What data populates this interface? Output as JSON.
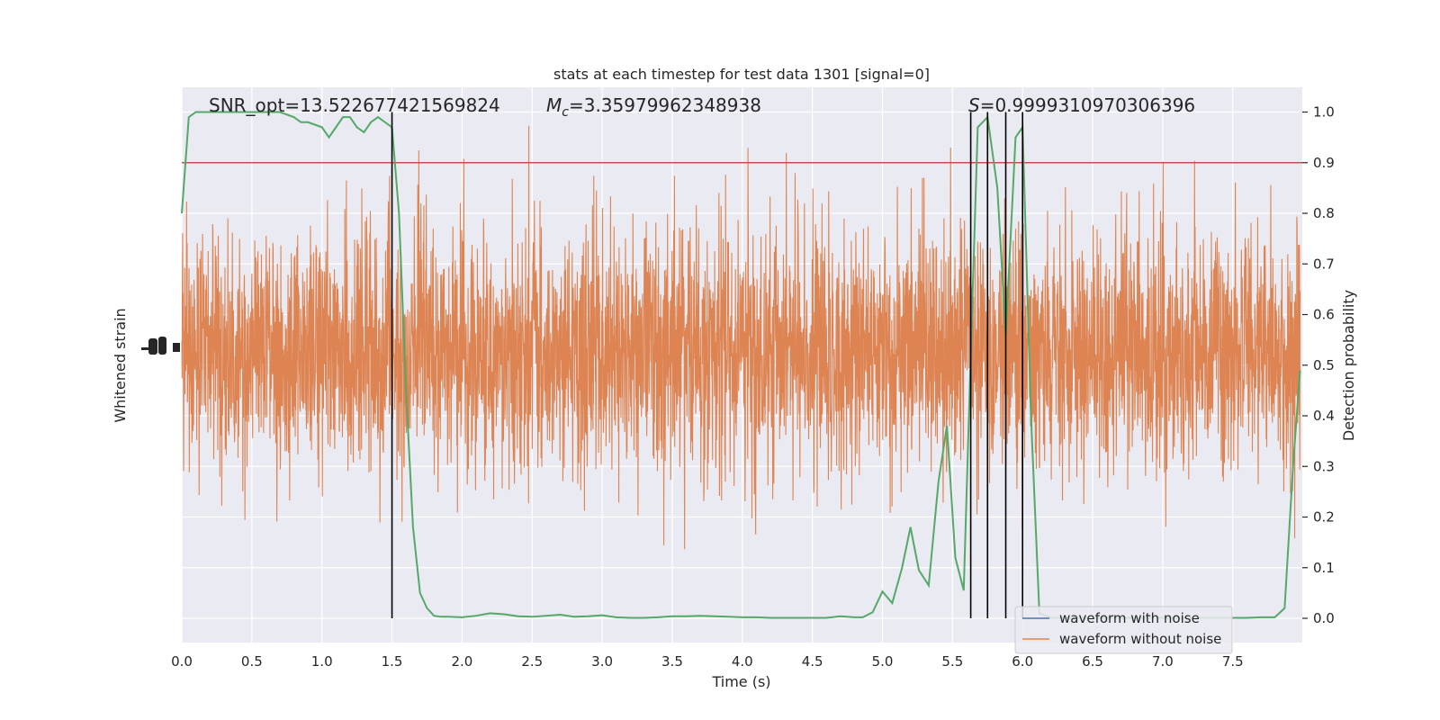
{
  "chart_data": {
    "type": "line",
    "title": "stats at each timestep for test data 1301 [signal=0]",
    "xlabel": "Time (s)",
    "ylabel_left": "Whitened strain",
    "ylabel_right": "Detection probability",
    "xlim": [
      0.0,
      8.0
    ],
    "ylim_right": [
      -0.05,
      1.05
    ],
    "x_ticks": [
      "0.0",
      "0.5",
      "1.0",
      "1.5",
      "2.0",
      "2.5",
      "3.0",
      "3.5",
      "4.0",
      "4.5",
      "5.0",
      "5.5",
      "6.0",
      "6.5",
      "7.0",
      "7.5"
    ],
    "y_right_ticks": [
      "0.0",
      "0.1",
      "0.2",
      "0.3",
      "0.4",
      "0.5",
      "0.6",
      "0.7",
      "0.8",
      "0.9",
      "1.0"
    ],
    "grid": true,
    "legend_position": "bottom-right",
    "annotations": {
      "snr": "SNR_opt=13.522677421569824",
      "mc_symbol": "M",
      "mc_sub": "c",
      "mc_value": "=3.35979962348938",
      "s_symbol": "S",
      "s_value": "=0.9999310970306396"
    },
    "threshold": 0.9,
    "vertical_lines_x": [
      1.5,
      5.63,
      5.75,
      5.88,
      6.0
    ],
    "series": [
      {
        "name": "waveform with noise",
        "color": "#4c72b0",
        "kind": "strain"
      },
      {
        "name": "waveform without noise",
        "color": "#dd8452",
        "kind": "strain"
      },
      {
        "kind": "probability",
        "color": "#55a868",
        "x": [
          0.0,
          0.05,
          0.1,
          0.2,
          0.3,
          0.4,
          0.5,
          0.6,
          0.7,
          0.8,
          0.85,
          0.9,
          1.0,
          1.05,
          1.1,
          1.15,
          1.2,
          1.25,
          1.3,
          1.35,
          1.4,
          1.45,
          1.5,
          1.55,
          1.6,
          1.65,
          1.7,
          1.75,
          1.8,
          1.85,
          1.9,
          2.0,
          2.1,
          2.2,
          2.3,
          2.4,
          2.5,
          2.6,
          2.7,
          2.8,
          2.9,
          3.0,
          3.1,
          3.2,
          3.3,
          3.4,
          3.5,
          3.6,
          3.7,
          3.8,
          3.9,
          4.0,
          4.1,
          4.2,
          4.3,
          4.4,
          4.5,
          4.6,
          4.7,
          4.8,
          4.86,
          4.93,
          5.0,
          5.07,
          5.14,
          5.2,
          5.26,
          5.33,
          5.4,
          5.46,
          5.52,
          5.58,
          5.63,
          5.68,
          5.75,
          5.82,
          5.88,
          5.95,
          6.0,
          6.06,
          6.12,
          6.2,
          6.3,
          6.4,
          6.5,
          6.6,
          6.7,
          6.8,
          6.9,
          7.0,
          7.1,
          7.2,
          7.3,
          7.4,
          7.5,
          7.6,
          7.7,
          7.8,
          7.87,
          7.93,
          7.98
        ],
        "y": [
          0.8,
          0.99,
          1.0,
          1.0,
          1.0,
          1.0,
          1.0,
          1.0,
          1.0,
          0.99,
          0.98,
          0.98,
          0.97,
          0.95,
          0.97,
          0.99,
          0.99,
          0.97,
          0.96,
          0.98,
          0.99,
          0.98,
          0.97,
          0.8,
          0.45,
          0.18,
          0.05,
          0.02,
          0.005,
          0.003,
          0.003,
          0.002,
          0.005,
          0.01,
          0.008,
          0.004,
          0.003,
          0.005,
          0.007,
          0.003,
          0.004,
          0.006,
          0.002,
          0.001,
          0.001,
          0.002,
          0.004,
          0.004,
          0.005,
          0.004,
          0.003,
          0.002,
          0.002,
          0.001,
          0.001,
          0.001,
          0.001,
          0.001,
          0.004,
          0.002,
          0.002,
          0.012,
          0.053,
          0.03,
          0.1,
          0.18,
          0.095,
          0.065,
          0.27,
          0.38,
          0.12,
          0.055,
          0.52,
          0.97,
          0.99,
          0.85,
          0.56,
          0.95,
          0.97,
          0.4,
          0.01,
          0.001,
          0.001,
          0.001,
          0.001,
          0.001,
          0.001,
          0.001,
          0.001,
          0.001,
          0.001,
          0.001,
          0.001,
          0.001,
          0.001,
          0.001,
          0.002,
          0.002,
          0.02,
          0.3,
          0.49
        ]
      }
    ]
  }
}
